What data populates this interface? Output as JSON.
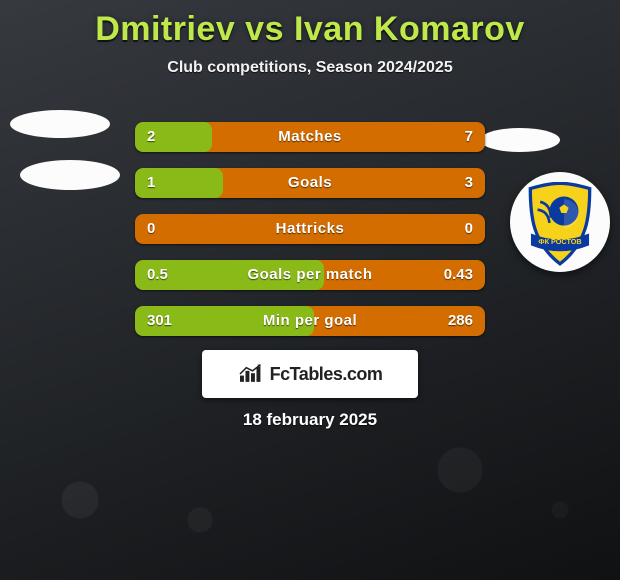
{
  "title": "Dmitriev vs Ivan Komarov",
  "subtitle": "Club competitions, Season 2024/2025",
  "date_line": "18 february 2025",
  "brand_text": "FcTables.com",
  "colors": {
    "title": "#bfe94a",
    "left_fill": "#89ba17",
    "right_fill": "#d46d00",
    "text": "#ffffff"
  },
  "rows": [
    {
      "label": "Matches",
      "left": "2",
      "right": "7",
      "left_pct": 22,
      "right_pct": 78
    },
    {
      "label": "Goals",
      "left": "1",
      "right": "3",
      "left_pct": 25,
      "right_pct": 75
    },
    {
      "label": "Hattricks",
      "left": "0",
      "right": "0",
      "left_pct": 0,
      "right_pct": 0,
      "neutral": true
    },
    {
      "label": "Goals per match",
      "left": "0.5",
      "right": "0.43",
      "left_pct": 54,
      "right_pct": 46
    },
    {
      "label": "Min per goal",
      "left": "301",
      "right": "286",
      "left_pct": 51,
      "right_pct": 49
    }
  ],
  "rostov_badge": {
    "shield_fill": "#f7d21a",
    "shield_stroke": "#0a3aa0",
    "ball_fill": "#0a3aa0",
    "ribbon_text": "ФК РОСТОВ"
  }
}
